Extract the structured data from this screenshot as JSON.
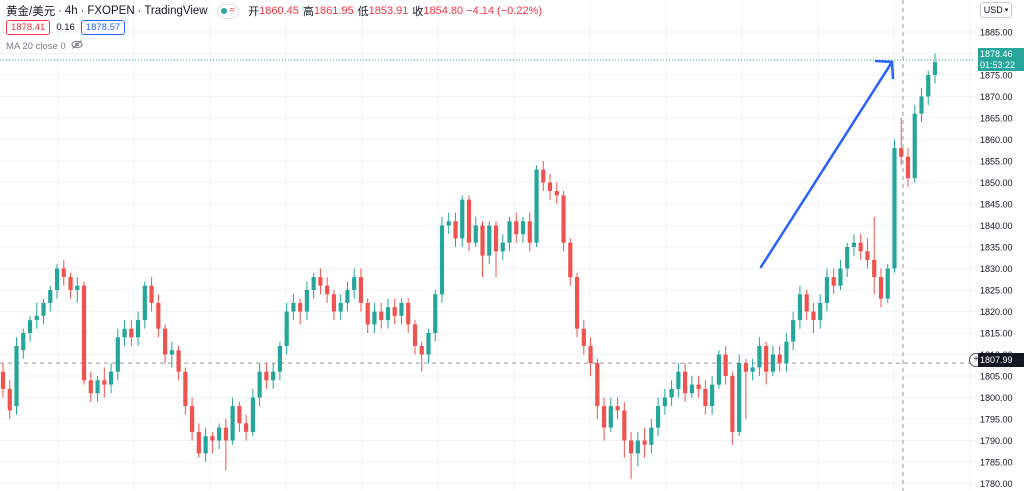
{
  "header": {
    "symbol": "黄金/美元",
    "timeframe": "4h",
    "broker": "FXOPEN",
    "source": "TradingView",
    "ohlc": [
      {
        "key": "开",
        "value": "1860.45"
      },
      {
        "key": "高",
        "value": "1861.95"
      },
      {
        "key": "低",
        "value": "1853.91"
      },
      {
        "key": "收",
        "value": "1854.80"
      }
    ],
    "change": "−4.14 (−0.22%)"
  },
  "quote": {
    "sell": "1878.41",
    "spread": "0.16",
    "buy": "1878.57"
  },
  "indicator": {
    "label": "MA 20 close 0"
  },
  "currency": "USD",
  "current_price": {
    "price": "1878.46",
    "countdown": "01:53:22"
  },
  "crosshair_price": "1807.99",
  "colors": {
    "up": "#26a69a",
    "down": "#ef5350",
    "arrow": "#2962ff",
    "grid": "#f0f3fa"
  },
  "chart_data": {
    "type": "candlestick",
    "ylim": [
      1780,
      1880
    ],
    "y_ticks": [
      "1885.00",
      "1880.00",
      "1875.00",
      "1870.00",
      "1865.00",
      "1860.00",
      "1855.00",
      "1850.00",
      "1845.00",
      "1840.00",
      "1835.00",
      "1830.00",
      "1825.00",
      "1820.00",
      "1815.00",
      "1810.00",
      "1805.00",
      "1800.00",
      "1795.00",
      "1790.00",
      "1785.00",
      "1780.00"
    ],
    "candles": [
      [
        1806,
        1802,
        1808,
        1800
      ],
      [
        1802,
        1797,
        1804,
        1795
      ],
      [
        1798,
        1812,
        1814,
        1796
      ],
      [
        1811,
        1815,
        1816,
        1809
      ],
      [
        1815,
        1818,
        1819,
        1813
      ],
      [
        1818,
        1819,
        1822,
        1816
      ],
      [
        1819,
        1822,
        1823,
        1817
      ],
      [
        1822,
        1825,
        1826,
        1820
      ],
      [
        1825,
        1830,
        1831,
        1823
      ],
      [
        1830,
        1828,
        1832,
        1826
      ],
      [
        1828,
        1825,
        1829,
        1823
      ],
      [
        1825,
        1826,
        1828,
        1822
      ],
      [
        1826,
        1804,
        1827,
        1803
      ],
      [
        1804,
        1801,
        1806,
        1799
      ],
      [
        1801,
        1804,
        1805,
        1799
      ],
      [
        1804,
        1803,
        1807,
        1800
      ],
      [
        1803,
        1806,
        1808,
        1801
      ],
      [
        1806,
        1814,
        1816,
        1804
      ],
      [
        1814,
        1816,
        1818,
        1812
      ],
      [
        1816,
        1814,
        1818,
        1812
      ],
      [
        1814,
        1818,
        1820,
        1812
      ],
      [
        1818,
        1826,
        1827,
        1816
      ],
      [
        1826,
        1822,
        1828,
        1820
      ],
      [
        1822,
        1816,
        1824,
        1814
      ],
      [
        1816,
        1810,
        1817,
        1808
      ],
      [
        1810,
        1811,
        1813,
        1807
      ],
      [
        1811,
        1806,
        1812,
        1804
      ],
      [
        1806,
        1798,
        1807,
        1796
      ],
      [
        1798,
        1792,
        1800,
        1790
      ],
      [
        1792,
        1787,
        1794,
        1786
      ],
      [
        1787,
        1791,
        1793,
        1785
      ],
      [
        1791,
        1790,
        1792,
        1787
      ],
      [
        1790,
        1793,
        1794,
        1788
      ],
      [
        1793,
        1790,
        1795,
        1783
      ],
      [
        1790,
        1798,
        1800,
        1789
      ],
      [
        1798,
        1794,
        1799,
        1792
      ],
      [
        1794,
        1792,
        1796,
        1790
      ],
      [
        1792,
        1800,
        1802,
        1791
      ],
      [
        1800,
        1806,
        1808,
        1798
      ],
      [
        1806,
        1804,
        1808,
        1802
      ],
      [
        1804,
        1806,
        1808,
        1802
      ],
      [
        1806,
        1812,
        1813,
        1804
      ],
      [
        1812,
        1820,
        1822,
        1810
      ],
      [
        1820,
        1822,
        1824,
        1818
      ],
      [
        1822,
        1820,
        1823,
        1817
      ],
      [
        1820,
        1825,
        1827,
        1818
      ],
      [
        1825,
        1828,
        1829,
        1823
      ],
      [
        1828,
        1826,
        1830,
        1824
      ],
      [
        1826,
        1824,
        1828,
        1822
      ],
      [
        1824,
        1820,
        1825,
        1818
      ],
      [
        1820,
        1822,
        1824,
        1818
      ],
      [
        1822,
        1825,
        1827,
        1820
      ],
      [
        1825,
        1828,
        1830,
        1823
      ],
      [
        1828,
        1822,
        1830,
        1820
      ],
      [
        1822,
        1817,
        1823,
        1815
      ],
      [
        1817,
        1820,
        1822,
        1815
      ],
      [
        1820,
        1818,
        1822,
        1816
      ],
      [
        1818,
        1821,
        1823,
        1816
      ],
      [
        1821,
        1819,
        1823,
        1817
      ],
      [
        1819,
        1822,
        1823,
        1817
      ],
      [
        1822,
        1817,
        1823,
        1815
      ],
      [
        1817,
        1812,
        1818,
        1810
      ],
      [
        1812,
        1810,
        1813,
        1806
      ],
      [
        1810,
        1815,
        1816,
        1808
      ],
      [
        1815,
        1824,
        1825,
        1813
      ],
      [
        1824,
        1840,
        1842,
        1822
      ],
      [
        1840,
        1841,
        1843,
        1838
      ],
      [
        1841,
        1837,
        1843,
        1835
      ],
      [
        1837,
        1846,
        1847,
        1835
      ],
      [
        1846,
        1836,
        1847,
        1834
      ],
      [
        1836,
        1840,
        1842,
        1835
      ],
      [
        1840,
        1833,
        1841,
        1828
      ],
      [
        1833,
        1840,
        1841,
        1831
      ],
      [
        1840,
        1834,
        1841,
        1828
      ],
      [
        1834,
        1836,
        1838,
        1832
      ],
      [
        1836,
        1841,
        1842,
        1834
      ],
      [
        1841,
        1838,
        1843,
        1836
      ],
      [
        1838,
        1841,
        1842,
        1836
      ],
      [
        1841,
        1836,
        1843,
        1834
      ],
      [
        1836,
        1853,
        1854,
        1835
      ],
      [
        1853,
        1850,
        1855,
        1848
      ],
      [
        1850,
        1848,
        1852,
        1846
      ],
      [
        1848,
        1847,
        1850,
        1845
      ],
      [
        1847,
        1836,
        1848,
        1834
      ],
      [
        1836,
        1828,
        1837,
        1826
      ],
      [
        1828,
        1816,
        1829,
        1814
      ],
      [
        1816,
        1812,
        1818,
        1810
      ],
      [
        1812,
        1808,
        1814,
        1805
      ],
      [
        1808,
        1798,
        1809,
        1795
      ],
      [
        1798,
        1793,
        1800,
        1790
      ],
      [
        1793,
        1798,
        1800,
        1792
      ],
      [
        1798,
        1797,
        1800,
        1795
      ],
      [
        1797,
        1790,
        1799,
        1786
      ],
      [
        1790,
        1787,
        1792,
        1781
      ],
      [
        1787,
        1790,
        1792,
        1784
      ],
      [
        1790,
        1789,
        1793,
        1786
      ],
      [
        1789,
        1793,
        1795,
        1787
      ],
      [
        1793,
        1798,
        1800,
        1791
      ],
      [
        1798,
        1800,
        1802,
        1796
      ],
      [
        1800,
        1802,
        1804,
        1798
      ],
      [
        1802,
        1806,
        1808,
        1800
      ],
      [
        1806,
        1801,
        1808,
        1799
      ],
      [
        1801,
        1803,
        1805,
        1800
      ],
      [
        1803,
        1802,
        1805,
        1800
      ],
      [
        1802,
        1798,
        1804,
        1796
      ],
      [
        1798,
        1803,
        1805,
        1796
      ],
      [
        1803,
        1810,
        1811,
        1802
      ],
      [
        1810,
        1805,
        1812,
        1803
      ],
      [
        1805,
        1792,
        1806,
        1789
      ],
      [
        1792,
        1808,
        1810,
        1791
      ],
      [
        1808,
        1806,
        1809,
        1795
      ],
      [
        1806,
        1807,
        1809,
        1804
      ],
      [
        1807,
        1812,
        1814,
        1805
      ],
      [
        1812,
        1806,
        1813,
        1803
      ],
      [
        1806,
        1810,
        1812,
        1805
      ],
      [
        1810,
        1808,
        1812,
        1806
      ],
      [
        1808,
        1813,
        1815,
        1806
      ],
      [
        1813,
        1818,
        1820,
        1811
      ],
      [
        1818,
        1824,
        1826,
        1816
      ],
      [
        1824,
        1820,
        1825,
        1818
      ],
      [
        1820,
        1818,
        1822,
        1815
      ],
      [
        1818,
        1822,
        1824,
        1816
      ],
      [
        1822,
        1828,
        1830,
        1820
      ],
      [
        1828,
        1826,
        1830,
        1824
      ],
      [
        1826,
        1830,
        1832,
        1825
      ],
      [
        1830,
        1835,
        1836,
        1828
      ],
      [
        1835,
        1836,
        1838,
        1833
      ],
      [
        1836,
        1834,
        1838,
        1832
      ],
      [
        1834,
        1832,
        1837,
        1830
      ],
      [
        1832,
        1828,
        1842,
        1824
      ],
      [
        1828,
        1823,
        1830,
        1821
      ],
      [
        1823,
        1830,
        1831,
        1822
      ],
      [
        1830,
        1858,
        1860,
        1829
      ],
      [
        1858,
        1856,
        1865,
        1854
      ],
      [
        1856,
        1851,
        1858,
        1849
      ],
      [
        1851,
        1866,
        1868,
        1850
      ],
      [
        1866,
        1870,
        1872,
        1864
      ],
      [
        1870,
        1875,
        1876,
        1868
      ],
      [
        1875,
        1878,
        1880,
        1873
      ]
    ]
  }
}
